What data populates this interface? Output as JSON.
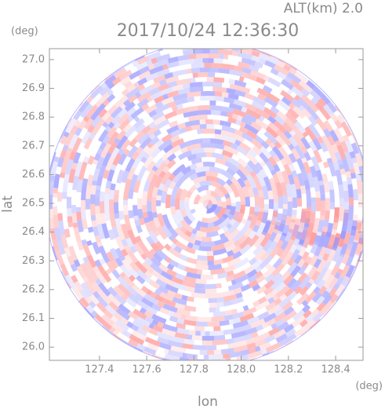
{
  "chart_data": {
    "type": "radar",
    "title": "2017/10/24 12:36:30",
    "annotation": "ALT(km) 2.0",
    "x_label": "lon",
    "y_label": "lat",
    "x_unit": "(deg)",
    "y_unit": "(deg)",
    "xlim": [
      127.188,
      128.516
    ],
    "ylim": [
      25.954,
      27.038
    ],
    "xticks": [
      127.4,
      127.6,
      127.8,
      {
        "value": 128,
        "label": "128.0"
      },
      128.2,
      128.4
    ],
    "yticks": [
      {
        "value": 26,
        "label": "26.0"
      },
      26.1,
      26.2,
      26.3,
      26.4,
      26.5,
      26.6,
      26.7,
      26.8,
      26.9,
      {
        "value": 27,
        "label": "27.0"
      }
    ],
    "colors": {
      "positive": "#ff8c8c",
      "negative": "#8c8cff"
    }
  }
}
